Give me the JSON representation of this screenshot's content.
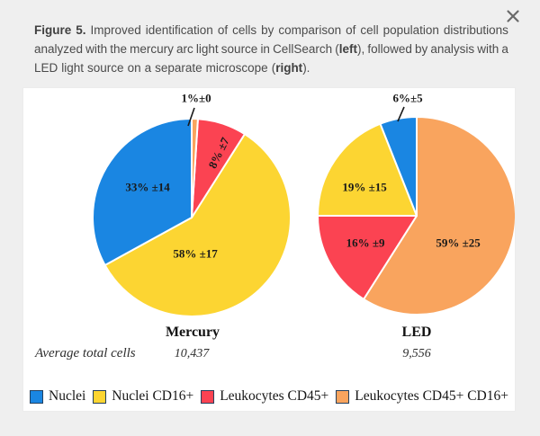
{
  "ui": {
    "background": "#efefef",
    "panel": "#ffffff",
    "caption_color": "#4b4b4b",
    "close_icon_color": "#6a6a6a",
    "slice_label_color": "#191919"
  },
  "caption": {
    "lines": [
      [
        {
          "t": "Figure 5.",
          "b": true
        },
        {
          "t": " Improved identification of cells by comparison of cell population distributions",
          "b": false
        }
      ],
      [
        {
          "t": "analyzed with the mercury arc light source in CellSearch (",
          "b": false
        },
        {
          "t": "left",
          "b": true
        },
        {
          "t": "), followed by analysis with a",
          "b": false
        }
      ],
      [
        {
          "t": "LED light source on a separate microscope (",
          "b": false
        },
        {
          "t": "right",
          "b": true
        },
        {
          "t": ").",
          "b": false
        }
      ]
    ]
  },
  "chart_data": [
    {
      "type": "pie",
      "title": "Mercury",
      "average_total_cells": "10,437",
      "start_angle_deg": 0,
      "direction": "clockwise",
      "slices": [
        {
          "series": "Leukocytes CD45+ CD16+",
          "value": 1,
          "sd": 0,
          "label": "1%±0",
          "color": "#f9a45e"
        },
        {
          "series": "Leukocytes CD45+",
          "value": 8,
          "sd": 7,
          "label": "8% ±7",
          "color": "#fb4352"
        },
        {
          "series": "Nuclei CD16+",
          "value": 58,
          "sd": 17,
          "label": "58% ±17",
          "color": "#fcd532"
        },
        {
          "series": "Nuclei",
          "value": 33,
          "sd": 14,
          "label": "33% ±14",
          "color": "#1a86e2"
        }
      ]
    },
    {
      "type": "pie",
      "title": "LED",
      "average_total_cells": "9,556",
      "start_angle_deg": 0,
      "direction": "clockwise",
      "slices": [
        {
          "series": "Leukocytes CD45+ CD16+",
          "value": 59,
          "sd": 25,
          "label": "59% ±25",
          "color": "#f9a45e"
        },
        {
          "series": "Leukocytes CD45+",
          "value": 16,
          "sd": 9,
          "label": "16% ±9",
          "color": "#fb4352"
        },
        {
          "series": "Nuclei CD16+",
          "value": 19,
          "sd": 15,
          "label": "19% ±15",
          "color": "#fcd532"
        },
        {
          "series": "Nuclei",
          "value": 6,
          "sd": 5,
          "label": "6%±5",
          "color": "#1a86e2"
        }
      ]
    }
  ],
  "totals_row": {
    "label": "Average total cells"
  },
  "legend": {
    "swatch_border": "#24405e",
    "items": [
      {
        "label": "Nuclei",
        "color": "#1a86e2"
      },
      {
        "label": "Nuclei CD16+",
        "color": "#fcd532"
      },
      {
        "label": "Leukocytes CD45+",
        "color": "#fb4352"
      },
      {
        "label": "Leukocytes CD45+ CD16+",
        "color": "#f9a45e"
      }
    ]
  }
}
